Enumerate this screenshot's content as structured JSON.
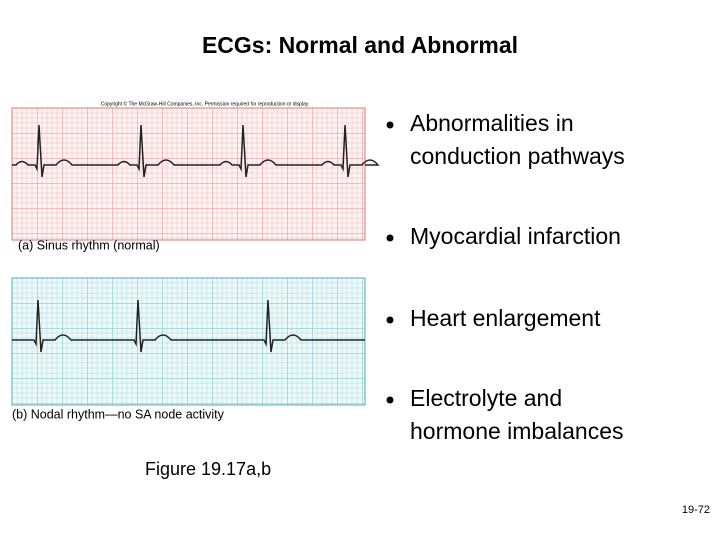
{
  "title": "ECGs: Normal and Abnormal",
  "copyright": "Copyright © The McGraw-Hill Companies, Inc. Permission required for reproduction or display.",
  "panels": [
    {
      "caption": "(a) Sinus rhythm (normal)"
    },
    {
      "caption": "(b) Nodal rhythm—no SA node activity"
    }
  ],
  "bullets": [
    {
      "lines": [
        "Abnormalities in",
        "conduction pathways"
      ]
    },
    {
      "lines": [
        "Myocardial infarction"
      ]
    },
    {
      "lines": [
        "Heart enlargement"
      ]
    },
    {
      "lines": [
        "Electrolyte and",
        "hormone imbalances"
      ]
    }
  ],
  "figure_label": "Figure 19.17a,b",
  "page_number": "19-72"
}
